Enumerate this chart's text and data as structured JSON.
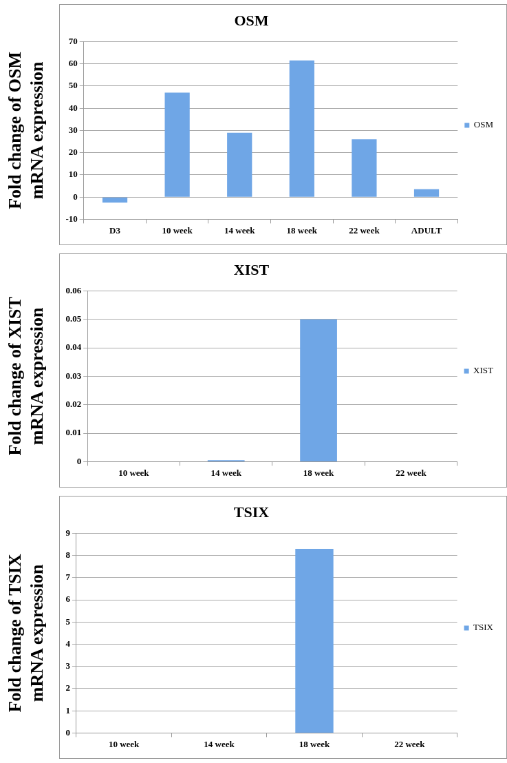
{
  "chart_data": [
    {
      "type": "bar",
      "title": "OSM",
      "ylabel": "Fold change of OSM mRNA expression",
      "categories": [
        "D3",
        "10 week",
        "14 week",
        "18 week",
        "22 week",
        "ADULT"
      ],
      "series": [
        {
          "name": "OSM",
          "color": "#6fa6e6",
          "values": [
            -2.5,
            47,
            29,
            61.5,
            26,
            3.5
          ]
        }
      ],
      "ylim": [
        -10,
        70
      ],
      "yticks": [
        -10,
        0,
        10,
        20,
        30,
        40,
        50,
        60,
        70
      ],
      "grid": "y",
      "legend": "right"
    },
    {
      "type": "bar",
      "title": "XIST",
      "ylabel": "Fold change of XIST mRNA expression",
      "categories": [
        "10 week",
        "14 week",
        "18 week",
        "22 week"
      ],
      "series": [
        {
          "name": "XIST",
          "color": "#6fa6e6",
          "values": [
            0,
            0.0005,
            0.05,
            0
          ]
        }
      ],
      "ylim": [
        0,
        0.06
      ],
      "yticks": [
        0,
        0.01,
        0.02,
        0.03,
        0.04,
        0.05,
        0.06
      ],
      "grid": "y",
      "legend": "right"
    },
    {
      "type": "bar",
      "title": "TSIX",
      "ylabel": "Fold change of TSIX mRNA expression",
      "categories": [
        "10 week",
        "14 week",
        "18 week",
        "22 week"
      ],
      "series": [
        {
          "name": "TSIX",
          "color": "#6fa6e6",
          "values": [
            0,
            0,
            8.3,
            0
          ]
        }
      ],
      "ylim": [
        0,
        9
      ],
      "yticks": [
        0,
        1,
        2,
        3,
        4,
        5,
        6,
        7,
        8,
        9
      ],
      "grid": "y",
      "legend": "right"
    }
  ]
}
